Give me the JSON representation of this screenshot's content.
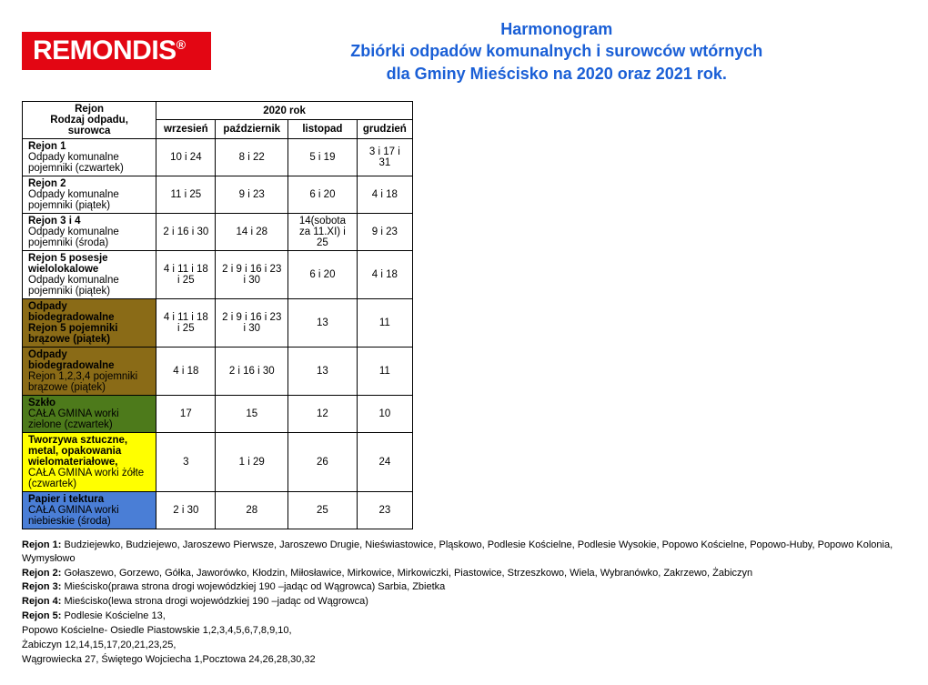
{
  "logo_text": "REMONDIS",
  "logo_reg": "®",
  "title1": "Harmonogram",
  "title2": "Zbiórki odpadów komunalnych i surowców wtórnych",
  "title3": "dla Gminy Mieścisko na 2020 oraz 2021 rok.",
  "table": {
    "year_header": "2020 rok",
    "region_header1": "Rejon",
    "region_header2": "Rodzaj odpadu, surowca",
    "months": [
      "wrzesień",
      "październik",
      "listopad",
      "grudzień"
    ],
    "rows": [
      {
        "label_bold": "Rejon 1",
        "label_rest": "Odpady komunalne pojemniki (czwartek)",
        "vals": [
          "10 i 24",
          "8 i 22",
          "5 i 19",
          "3 i 17 i 31"
        ],
        "bg": "#ffffff"
      },
      {
        "label_bold": "Rejon 2",
        "label_rest": "Odpady komunalne pojemniki (piątek)",
        "vals": [
          "11 i 25",
          "9 i 23",
          "6 i 20",
          "4 i 18"
        ],
        "bg": "#ffffff"
      },
      {
        "label_bold": "Rejon 3 i 4",
        "label_rest": "Odpady komunalne pojemniki (środa)",
        "vals": [
          "2 i 16 i 30",
          "14 i 28",
          "14(sobota za 11.XI) i 25",
          "9 i 23"
        ],
        "bg": "#ffffff"
      },
      {
        "label_bold": "Rejon 5 posesje wielolokalowe",
        "label_rest": "Odpady komunalne pojemniki (piątek)",
        "vals": [
          "4 i 11 i 18 i 25",
          "2 i 9 i 16 i 23 i 30",
          "6 i 20",
          "4 i 18"
        ],
        "bg": "#ffffff"
      },
      {
        "label_bold": "Odpady biodegradowalne",
        "label_rest_bold": "Rejon 5 pojemniki brązowe (piątek)",
        "vals": [
          "4 i 11 i 18 i 25",
          "2 i 9 i 16 i 23 i 30",
          "13",
          "11"
        ],
        "bg": "#8a6b17"
      },
      {
        "label_bold": "Odpady biodegradowalne",
        "label_rest": "Rejon 1,2,3,4 pojemniki brązowe (piątek)",
        "vals": [
          "4 i 18",
          "2 i 16 i 30",
          "13",
          "11"
        ],
        "bg": "#8a6b17"
      },
      {
        "label_bold": "Szkło",
        "label_rest": "CAŁA GMINA worki zielone (czwartek)",
        "vals": [
          "17",
          "15",
          "12",
          "10"
        ],
        "bg": "#4d7a1b"
      },
      {
        "label_bold": "Tworzywa sztuczne, metal, opakowania wielomateriałowe,",
        "label_rest": " CAŁA GMINA worki żółte (czwartek)",
        "vals": [
          "3",
          "1 i 29",
          "26",
          "24"
        ],
        "bg": "#ffff00"
      },
      {
        "label_bold": "Papier i tektura",
        "label_rest": "CAŁA GMINA worki niebieskie (środa)",
        "vals": [
          "2 i 30",
          "28",
          "25",
          "23"
        ],
        "bg": "#4a7ed6"
      }
    ]
  },
  "notes": [
    {
      "bold": "Rejon 1:",
      "text": " Budziejewko, Budziejewo, Jaroszewo Pierwsze, Jaroszewo Drugie, Nieświastowice, Pląskowo, Podlesie Kościelne, Podlesie Wysokie, Popowo Kościelne, Popowo-Huby, Popowo Kolonia, Wymysłowo"
    },
    {
      "bold": "Rejon 2:",
      "text": " Gołaszewo, Gorzewo, Gółka, Jaworówko, Kłodzin, Miłosławice, Mirkowice, Mirkowiczki, Piastowice, Strzeszkowo, Wiela, Wybranówko, Zakrzewo, Żabiczyn"
    },
    {
      "bold": "Rejon 3:",
      "text": " Mieścisko(prawa strona drogi wojewódzkiej 190 –jadąc od Wągrowca) Sarbia, Zbietka"
    },
    {
      "bold": "Rejon 4:",
      "text": " Mieścisko(lewa strona drogi wojewódzkiej 190 –jadąc od Wągrowca)"
    },
    {
      "bold": "Rejon 5:",
      "text": " Podlesie Kościelne 13,"
    },
    {
      "bold": "",
      "text": "Popowo Kościelne- Osiedle Piastowskie 1,2,3,4,5,6,7,8,9,10,"
    },
    {
      "bold": "",
      "text": "Żabiczyn 12,14,15,17,20,21,23,25,"
    },
    {
      "bold": "",
      "text": "Wągrowiecka 27, Świętego Wojciecha 1,Pocztowa 24,26,28,30,32"
    }
  ]
}
